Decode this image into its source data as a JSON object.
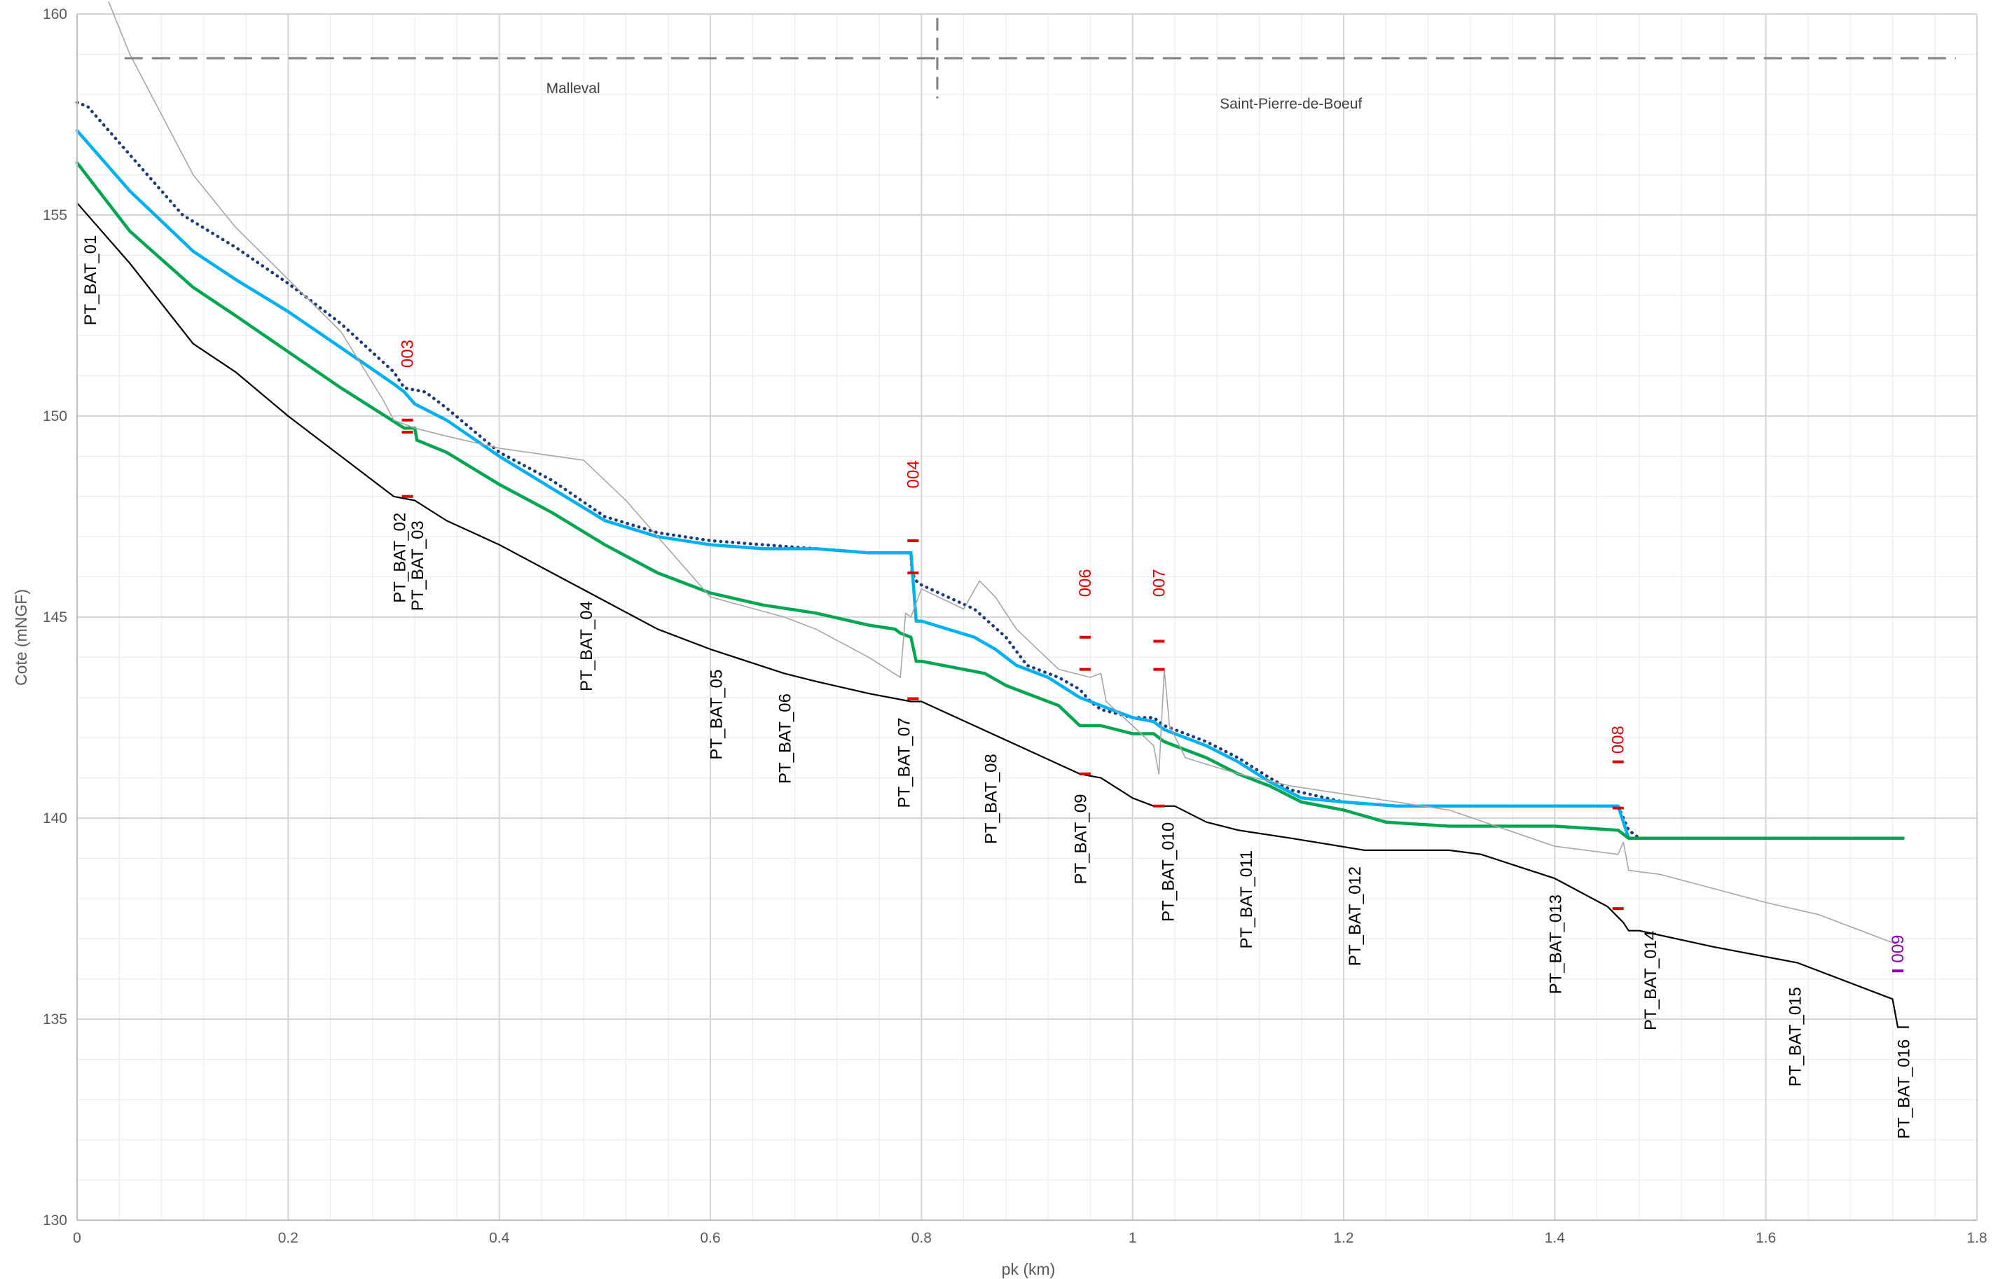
{
  "chart_data": {
    "type": "line",
    "xlabel": "pk (km)",
    "ylabel": "Cote (mNGF)",
    "xlim": [
      0,
      1.8
    ],
    "ylim": [
      130,
      160
    ],
    "x_ticks": [
      {
        "value": 0,
        "label": "0"
      },
      {
        "value": 0.2,
        "label": "0.2"
      },
      {
        "value": 0.4,
        "label": "0.4"
      },
      {
        "value": 0.6,
        "label": "0.6"
      },
      {
        "value": 0.8,
        "label": "0.8"
      },
      {
        "value": 1,
        "label": "1"
      },
      {
        "value": 1.2,
        "label": "1.2"
      },
      {
        "value": 1.4,
        "label": "1.4"
      },
      {
        "value": 1.6,
        "label": "1.6"
      },
      {
        "value": 1.8,
        "label": "1.8"
      }
    ],
    "y_ticks": [
      {
        "value": 130,
        "label": "130"
      },
      {
        "value": 135,
        "label": "135"
      },
      {
        "value": 140,
        "label": "140"
      },
      {
        "value": 145,
        "label": "145"
      },
      {
        "value": 150,
        "label": "150"
      },
      {
        "value": 155,
        "label": "155"
      },
      {
        "value": 160,
        "label": "160"
      }
    ],
    "grid": true,
    "legend": "none",
    "communes": [
      {
        "name": "Malleval",
        "x_label": 0.47
      },
      {
        "name": "Saint-Pierre-de-Boeuf",
        "x_label": 1.15
      }
    ],
    "commune_boundary_pk": 0.815,
    "commune_line_level": 158.9,
    "series": [
      {
        "style": "dotted",
        "color": "#1f3a7a",
        "points": [
          [
            0,
            157.8
          ],
          [
            0.01,
            157.7
          ],
          [
            0.05,
            156.5
          ],
          [
            0.1,
            155
          ],
          [
            0.15,
            154.2
          ],
          [
            0.2,
            153.3
          ],
          [
            0.25,
            152.3
          ],
          [
            0.3,
            151.1
          ],
          [
            0.31,
            150.7
          ],
          [
            0.33,
            150.6
          ],
          [
            0.35,
            150.2
          ],
          [
            0.4,
            149.1
          ],
          [
            0.45,
            148.4
          ],
          [
            0.5,
            147.5
          ],
          [
            0.55,
            147.1
          ],
          [
            0.6,
            146.9
          ],
          [
            0.65,
            146.8
          ],
          [
            0.7,
            146.7
          ],
          [
            0.75,
            146.6
          ],
          [
            0.79,
            146.6
          ],
          [
            0.791,
            146.1
          ],
          [
            0.795,
            145.9
          ],
          [
            0.8,
            145.8
          ],
          [
            0.85,
            145.2
          ],
          [
            0.88,
            144.5
          ],
          [
            0.9,
            143.8
          ],
          [
            0.93,
            143.5
          ],
          [
            0.95,
            143.2
          ],
          [
            0.96,
            142.9
          ],
          [
            0.97,
            142.7
          ],
          [
            1,
            142.5
          ],
          [
            1.02,
            142.5
          ],
          [
            1.03,
            142.3
          ],
          [
            1.07,
            141.9
          ],
          [
            1.1,
            141.5
          ],
          [
            1.13,
            141
          ],
          [
            1.15,
            140.7
          ],
          [
            1.2,
            140.4
          ],
          [
            1.25,
            140.3
          ],
          [
            1.3,
            140.3
          ],
          [
            1.4,
            140.3
          ],
          [
            1.46,
            140.3
          ],
          [
            1.47,
            139.7
          ],
          [
            1.48,
            139.5
          ],
          [
            1.6,
            139.5
          ],
          [
            1.7,
            139.5
          ],
          [
            1.73,
            139.5
          ]
        ]
      },
      {
        "style": "solid",
        "color": "#00b0f0",
        "points": [
          [
            0,
            157.1
          ],
          [
            0.05,
            155.6
          ],
          [
            0.11,
            154.1
          ],
          [
            0.15,
            153.4
          ],
          [
            0.2,
            152.6
          ],
          [
            0.25,
            151.7
          ],
          [
            0.3,
            150.8
          ],
          [
            0.31,
            150.6
          ],
          [
            0.32,
            150.3
          ],
          [
            0.35,
            149.9
          ],
          [
            0.4,
            149
          ],
          [
            0.45,
            148.2
          ],
          [
            0.5,
            147.4
          ],
          [
            0.55,
            147
          ],
          [
            0.6,
            146.8
          ],
          [
            0.65,
            146.7
          ],
          [
            0.7,
            146.7
          ],
          [
            0.75,
            146.6
          ],
          [
            0.79,
            146.6
          ],
          [
            0.795,
            144.9
          ],
          [
            0.8,
            144.9
          ],
          [
            0.85,
            144.5
          ],
          [
            0.87,
            144.2
          ],
          [
            0.89,
            143.8
          ],
          [
            0.92,
            143.5
          ],
          [
            0.95,
            143
          ],
          [
            0.97,
            142.8
          ],
          [
            1,
            142.5
          ],
          [
            1.02,
            142.4
          ],
          [
            1.03,
            142.2
          ],
          [
            1.07,
            141.8
          ],
          [
            1.1,
            141.4
          ],
          [
            1.13,
            140.9
          ],
          [
            1.16,
            140.5
          ],
          [
            1.2,
            140.4
          ],
          [
            1.25,
            140.3
          ],
          [
            1.3,
            140.3
          ],
          [
            1.4,
            140.3
          ],
          [
            1.46,
            140.3
          ],
          [
            1.465,
            139.9
          ],
          [
            1.47,
            139.5
          ],
          [
            1.6,
            139.5
          ],
          [
            1.73,
            139.5
          ]
        ]
      },
      {
        "style": "solid",
        "color": "#00a650",
        "points": [
          [
            0,
            156.3
          ],
          [
            0.05,
            154.6
          ],
          [
            0.11,
            153.2
          ],
          [
            0.15,
            152.5
          ],
          [
            0.2,
            151.6
          ],
          [
            0.25,
            150.7
          ],
          [
            0.31,
            149.7
          ],
          [
            0.32,
            149.7
          ],
          [
            0.322,
            149.4
          ],
          [
            0.35,
            149.1
          ],
          [
            0.4,
            148.3
          ],
          [
            0.45,
            147.6
          ],
          [
            0.5,
            146.8
          ],
          [
            0.55,
            146.1
          ],
          [
            0.6,
            145.6
          ],
          [
            0.65,
            145.3
          ],
          [
            0.7,
            145.1
          ],
          [
            0.75,
            144.8
          ],
          [
            0.775,
            144.7
          ],
          [
            0.78,
            144.6
          ],
          [
            0.79,
            144.5
          ],
          [
            0.795,
            143.9
          ],
          [
            0.8,
            143.9
          ],
          [
            0.86,
            143.6
          ],
          [
            0.88,
            143.3
          ],
          [
            0.9,
            143.1
          ],
          [
            0.93,
            142.8
          ],
          [
            0.95,
            142.3
          ],
          [
            0.97,
            142.3
          ],
          [
            1,
            142.1
          ],
          [
            1.02,
            142.1
          ],
          [
            1.03,
            141.9
          ],
          [
            1.07,
            141.5
          ],
          [
            1.1,
            141.1
          ],
          [
            1.13,
            140.8
          ],
          [
            1.16,
            140.4
          ],
          [
            1.2,
            140.2
          ],
          [
            1.24,
            139.9
          ],
          [
            1.3,
            139.8
          ],
          [
            1.4,
            139.8
          ],
          [
            1.46,
            139.7
          ],
          [
            1.47,
            139.5
          ],
          [
            1.6,
            139.5
          ],
          [
            1.73,
            139.5
          ]
        ]
      },
      {
        "style": "solid",
        "color": "#000000",
        "points": [
          [
            0,
            155.3
          ],
          [
            0.05,
            153.8
          ],
          [
            0.11,
            151.8
          ],
          [
            0.15,
            151.1
          ],
          [
            0.2,
            150
          ],
          [
            0.25,
            149
          ],
          [
            0.3,
            148
          ],
          [
            0.32,
            147.9
          ],
          [
            0.35,
            147.4
          ],
          [
            0.4,
            146.8
          ],
          [
            0.45,
            146.1
          ],
          [
            0.5,
            145.4
          ],
          [
            0.55,
            144.7
          ],
          [
            0.6,
            144.2
          ],
          [
            0.67,
            143.6
          ],
          [
            0.7,
            143.4
          ],
          [
            0.75,
            143.1
          ],
          [
            0.79,
            142.9
          ],
          [
            0.8,
            142.9
          ],
          [
            0.85,
            142.3
          ],
          [
            0.9,
            141.7
          ],
          [
            0.95,
            141.1
          ],
          [
            0.97,
            141
          ],
          [
            1,
            140.5
          ],
          [
            1.02,
            140.3
          ],
          [
            1.04,
            140.3
          ],
          [
            1.07,
            139.9
          ],
          [
            1.1,
            139.7
          ],
          [
            1.15,
            139.5
          ],
          [
            1.22,
            139.2
          ],
          [
            1.3,
            139.2
          ],
          [
            1.33,
            139.1
          ],
          [
            1.4,
            138.5
          ],
          [
            1.45,
            137.8
          ],
          [
            1.465,
            137.4
          ],
          [
            1.47,
            137.2
          ],
          [
            1.48,
            137.2
          ],
          [
            1.55,
            136.8
          ],
          [
            1.63,
            136.4
          ],
          [
            1.72,
            135.5
          ],
          [
            1.725,
            134.8
          ],
          [
            1.735,
            134.8
          ]
        ]
      },
      {
        "style": "thin",
        "color": "#a6a6a6",
        "points": [
          [
            0.03,
            160.3
          ],
          [
            0.05,
            159
          ],
          [
            0.11,
            156
          ],
          [
            0.15,
            154.7
          ],
          [
            0.2,
            153.4
          ],
          [
            0.25,
            152.1
          ],
          [
            0.29,
            150.4
          ],
          [
            0.3,
            149.9
          ],
          [
            0.32,
            149.7
          ],
          [
            0.35,
            149.5
          ],
          [
            0.4,
            149.2
          ],
          [
            0.48,
            148.9
          ],
          [
            0.52,
            147.9
          ],
          [
            0.56,
            146.7
          ],
          [
            0.6,
            145.5
          ],
          [
            0.67,
            145
          ],
          [
            0.7,
            144.7
          ],
          [
            0.75,
            144
          ],
          [
            0.78,
            143.5
          ],
          [
            0.785,
            145.1
          ],
          [
            0.79,
            145
          ],
          [
            0.8,
            145.7
          ],
          [
            0.84,
            145.2
          ],
          [
            0.855,
            145.9
          ],
          [
            0.87,
            145.5
          ],
          [
            0.89,
            144.7
          ],
          [
            0.93,
            143.7
          ],
          [
            0.96,
            143.5
          ],
          [
            0.97,
            143.6
          ],
          [
            0.975,
            142.9
          ],
          [
            1,
            142.3
          ],
          [
            1.02,
            141.8
          ],
          [
            1.025,
            141.1
          ],
          [
            1.03,
            143.7
          ],
          [
            1.035,
            142.3
          ],
          [
            1.05,
            141.5
          ],
          [
            1.1,
            141.1
          ],
          [
            1.15,
            140.8
          ],
          [
            1.2,
            140.6
          ],
          [
            1.3,
            140.2
          ],
          [
            1.4,
            139.3
          ],
          [
            1.46,
            139.1
          ],
          [
            1.465,
            139.4
          ],
          [
            1.47,
            138.7
          ],
          [
            1.5,
            138.6
          ],
          [
            1.6,
            137.9
          ],
          [
            1.65,
            137.6
          ],
          [
            1.72,
            136.9
          ],
          [
            1.73,
            136.8
          ]
        ]
      }
    ],
    "red_marks": [
      {
        "x": 0.313,
        "y": 149.9
      },
      {
        "x": 0.313,
        "y": 149.6
      },
      {
        "x": 0.313,
        "y": 148
      },
      {
        "x": 0.792,
        "y": 146.9
      },
      {
        "x": 0.792,
        "y": 146.1
      },
      {
        "x": 0.792,
        "y": 142.97
      },
      {
        "x": 0.955,
        "y": 144.5
      },
      {
        "x": 0.955,
        "y": 143.7
      },
      {
        "x": 0.955,
        "y": 141.1
      },
      {
        "x": 1.025,
        "y": 144.4
      },
      {
        "x": 1.025,
        "y": 143.7
      },
      {
        "x": 1.025,
        "y": 140.3
      },
      {
        "x": 1.46,
        "y": 141.4
      },
      {
        "x": 1.46,
        "y": 140.25
      },
      {
        "x": 1.46,
        "y": 137.75
      }
    ],
    "purple_marks": [
      {
        "x": 1.725,
        "y": 136.2
      }
    ],
    "red_labels": [
      {
        "text": "003",
        "x": 0.313,
        "y": 151.2,
        "color": "#e00000"
      },
      {
        "text": "004",
        "x": 0.792,
        "y": 148.2,
        "color": "#e00000"
      },
      {
        "text": "006",
        "x": 0.955,
        "y": 145.5,
        "color": "#e00000"
      },
      {
        "text": "007",
        "x": 1.025,
        "y": 145.5,
        "color": "#e00000"
      },
      {
        "text": "008",
        "x": 1.46,
        "y": 141.6,
        "color": "#e00000"
      },
      {
        "text": "009",
        "x": 1.725,
        "y": 136.4,
        "color": "#8b00b5"
      }
    ],
    "point_labels": [
      {
        "text": "PT_BAT_01",
        "x": 0.012,
        "y": 154.5
      },
      {
        "text": "PT_BAT_02",
        "x": 0.305,
        "y": 147.6
      },
      {
        "text": "PT_BAT_03",
        "x": 0.322,
        "y": 147.4
      },
      {
        "text": "PT_BAT_04",
        "x": 0.482,
        "y": 145.4
      },
      {
        "text": "PT_BAT_05",
        "x": 0.605,
        "y": 143.7
      },
      {
        "text": "PT_BAT_06",
        "x": 0.67,
        "y": 143.1
      },
      {
        "text": "PT_BAT_07",
        "x": 0.783,
        "y": 142.5
      },
      {
        "text": "PT_BAT_08",
        "x": 0.865,
        "y": 141.6
      },
      {
        "text": "PT_BAT_09",
        "x": 0.95,
        "y": 140.6
      },
      {
        "text": "PT_BAT_010",
        "x": 1.033,
        "y": 139.9
      },
      {
        "text": "PT_BAT_011",
        "x": 1.107,
        "y": 139.2
      },
      {
        "text": "PT_BAT_012",
        "x": 1.21,
        "y": 138.8
      },
      {
        "text": "PT_BAT_013",
        "x": 1.4,
        "y": 138.1
      },
      {
        "text": "PT_BAT_014",
        "x": 1.49,
        "y": 137.2
      },
      {
        "text": "PT_BAT_015",
        "x": 1.627,
        "y": 135.8
      },
      {
        "text": "PT_BAT_016",
        "x": 1.73,
        "y": 134.5
      }
    ]
  }
}
